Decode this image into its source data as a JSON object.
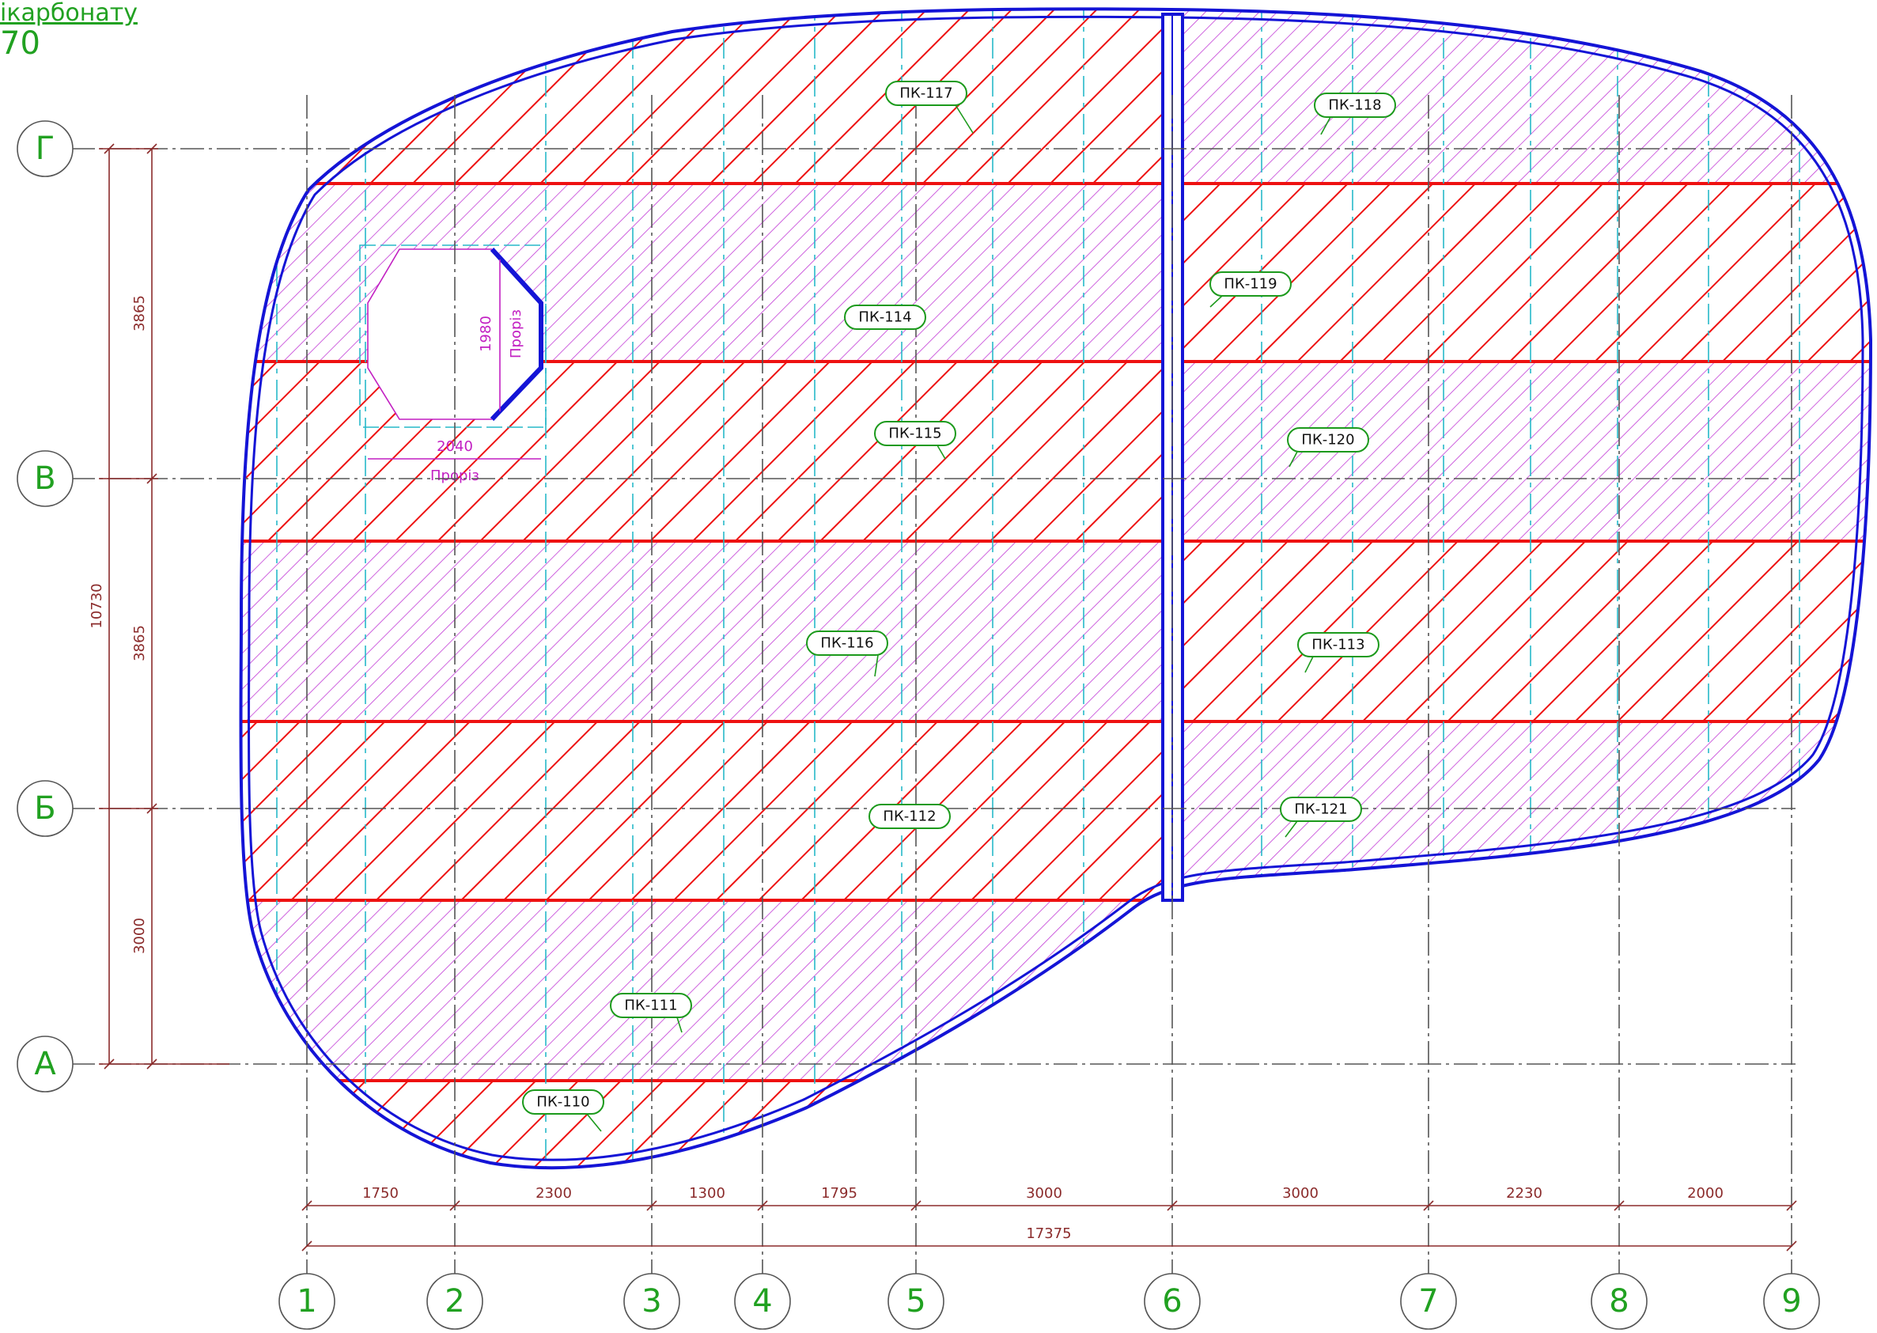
{
  "header": {
    "line1": "ікарбонату",
    "line2": "70"
  },
  "axes_vertical": [
    "1",
    "2",
    "3",
    "4",
    "5",
    "6",
    "7",
    "8",
    "9"
  ],
  "axes_horizontal": [
    "Г",
    "В",
    "Б",
    "А"
  ],
  "dims_bottom": [
    "1750",
    "2300",
    "1300",
    "1795",
    "3000",
    "3000",
    "2230",
    "2000"
  ],
  "dim_bottom_total": "17375",
  "dims_left": [
    "3865",
    "3865",
    "3000"
  ],
  "dim_left_total": "10730",
  "opening": {
    "width": "2040",
    "height": "1980",
    "label": "Проріз"
  },
  "panels": [
    "ПК-117",
    "ПК-118",
    "ПК-119",
    "ПК-114",
    "ПК-115",
    "ПК-120",
    "ПК-116",
    "ПК-113",
    "ПК-112",
    "ПК-121",
    "ПК-111",
    "ПК-110"
  ],
  "colors": {
    "red_hatch": "#ee1111",
    "purple_hatch": "#c23cd6",
    "contour": "#1414d6",
    "axis_text": "#21a121",
    "dimension": "#8b2b2b",
    "grid": "#555555",
    "cyan": "#27b9c9"
  }
}
